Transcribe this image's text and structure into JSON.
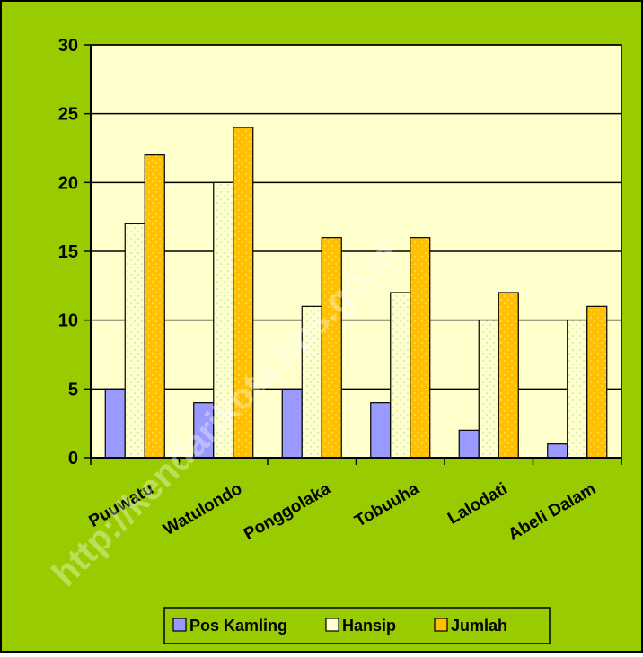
{
  "chart_data": {
    "type": "bar",
    "title": "",
    "xlabel": "",
    "ylabel": "",
    "categories": [
      "Puuwatu",
      "Watulondo",
      "Ponggolaka",
      "Tobuuha",
      "Lalodati",
      "Abeli Dalam"
    ],
    "series": [
      {
        "name": "Pos Kamling",
        "values": [
          5,
          4,
          5,
          4,
          2,
          1
        ],
        "color": "#9999ff",
        "pattern": "solid"
      },
      {
        "name": "Hansip",
        "values": [
          17,
          20,
          11,
          12,
          10,
          10
        ],
        "color": "#ffffcc",
        "pattern": "dotted"
      },
      {
        "name": "Jumlah",
        "values": [
          22,
          24,
          16,
          16,
          12,
          11
        ],
        "color": "#ffc000",
        "pattern": "dotted"
      }
    ],
    "ylim": [
      0,
      30
    ],
    "yticks": [
      0,
      5,
      10,
      15,
      20,
      25,
      30
    ],
    "grid": true,
    "legend_position": "bottom",
    "colors": {
      "outer_background": "#99cc00",
      "plot_background": "#ffffcc",
      "gridline": "#000000",
      "border": "#000000"
    }
  },
  "watermark": "http://kendarikota.bps.go.id"
}
